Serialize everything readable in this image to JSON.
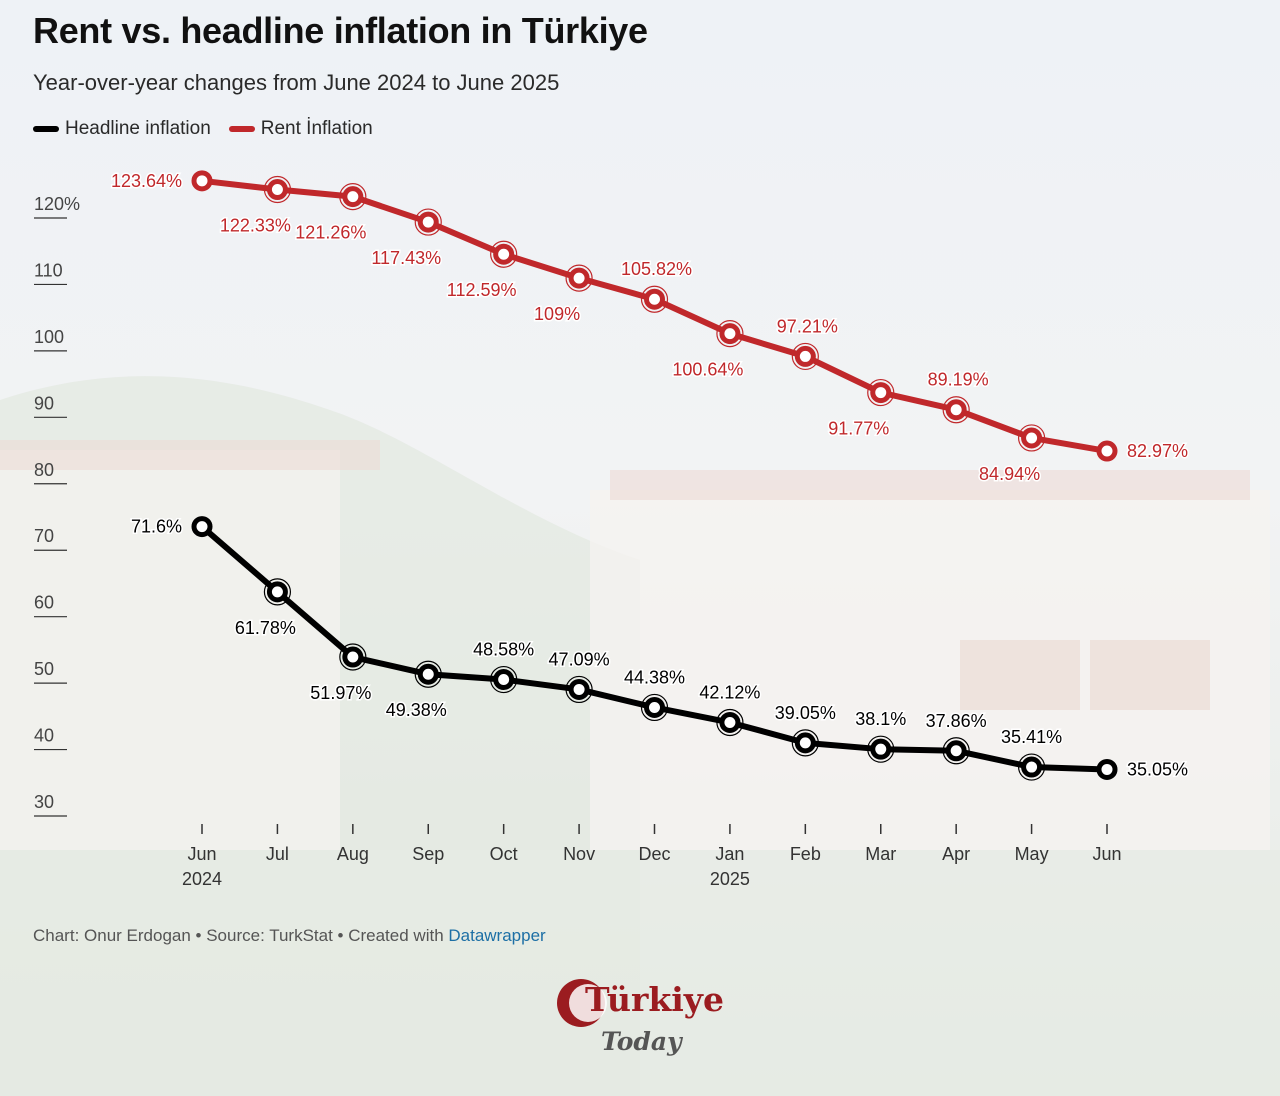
{
  "title": "Rent vs. headline inflation in Türkiye",
  "subtitle": "Year-over-year changes from June 2024 to June 2025",
  "footer": {
    "credit": "Chart: Onur Erdogan • Source: TurkStat • Created with ",
    "link": "Datawrapper"
  },
  "logo": {
    "top": "Türkiye",
    "bottom": "Today"
  },
  "colors": {
    "headline": "#000000",
    "rent": "#c0282b"
  },
  "chart_data": {
    "type": "line",
    "title": "Rent vs. headline inflation in Türkiye",
    "subtitle": "Year-over-year changes from June 2024 to June 2025",
    "categories": [
      "Jun",
      "Jul",
      "Aug",
      "Sep",
      "Oct",
      "Nov",
      "Dec",
      "Jan",
      "Feb",
      "Mar",
      "Apr",
      "May",
      "Jun"
    ],
    "year_labels": [
      "2024",
      "",
      "",
      "",
      "",
      "",
      "",
      "2025",
      "",
      "",
      "",
      "",
      ""
    ],
    "ylim": [
      30,
      125
    ],
    "yticks": [
      30,
      40,
      50,
      60,
      70,
      80,
      90,
      100,
      110,
      120
    ],
    "ytick_labels": [
      "30",
      "40",
      "50",
      "60",
      "70",
      "80",
      "90",
      "100",
      "110",
      "120%"
    ],
    "grid": false,
    "legend": "top-left",
    "series": [
      {
        "name": "Headline inflation",
        "values": [
          71.6,
          61.78,
          51.97,
          49.38,
          48.58,
          47.09,
          44.38,
          42.12,
          39.05,
          38.1,
          37.86,
          35.41,
          35.05
        ],
        "labels": [
          "71.6%",
          "61.78%",
          "51.97%",
          "49.38%",
          "48.58%",
          "47.09%",
          "44.38%",
          "42.12%",
          "39.05%",
          "38.1%",
          "37.86%",
          "35.41%",
          "35.05%"
        ]
      },
      {
        "name": "Rent İnflation",
        "values": [
          123.64,
          122.33,
          121.26,
          117.43,
          112.59,
          109,
          105.82,
          100.64,
          97.21,
          91.77,
          89.19,
          84.94,
          82.97
        ],
        "labels": [
          "123.64%",
          "122.33%",
          "121.26%",
          "117.43%",
          "112.59%",
          "109%",
          "105.82%",
          "100.64%",
          "97.21%",
          "91.77%",
          "89.19%",
          "84.94%",
          "82.97%"
        ]
      }
    ]
  }
}
